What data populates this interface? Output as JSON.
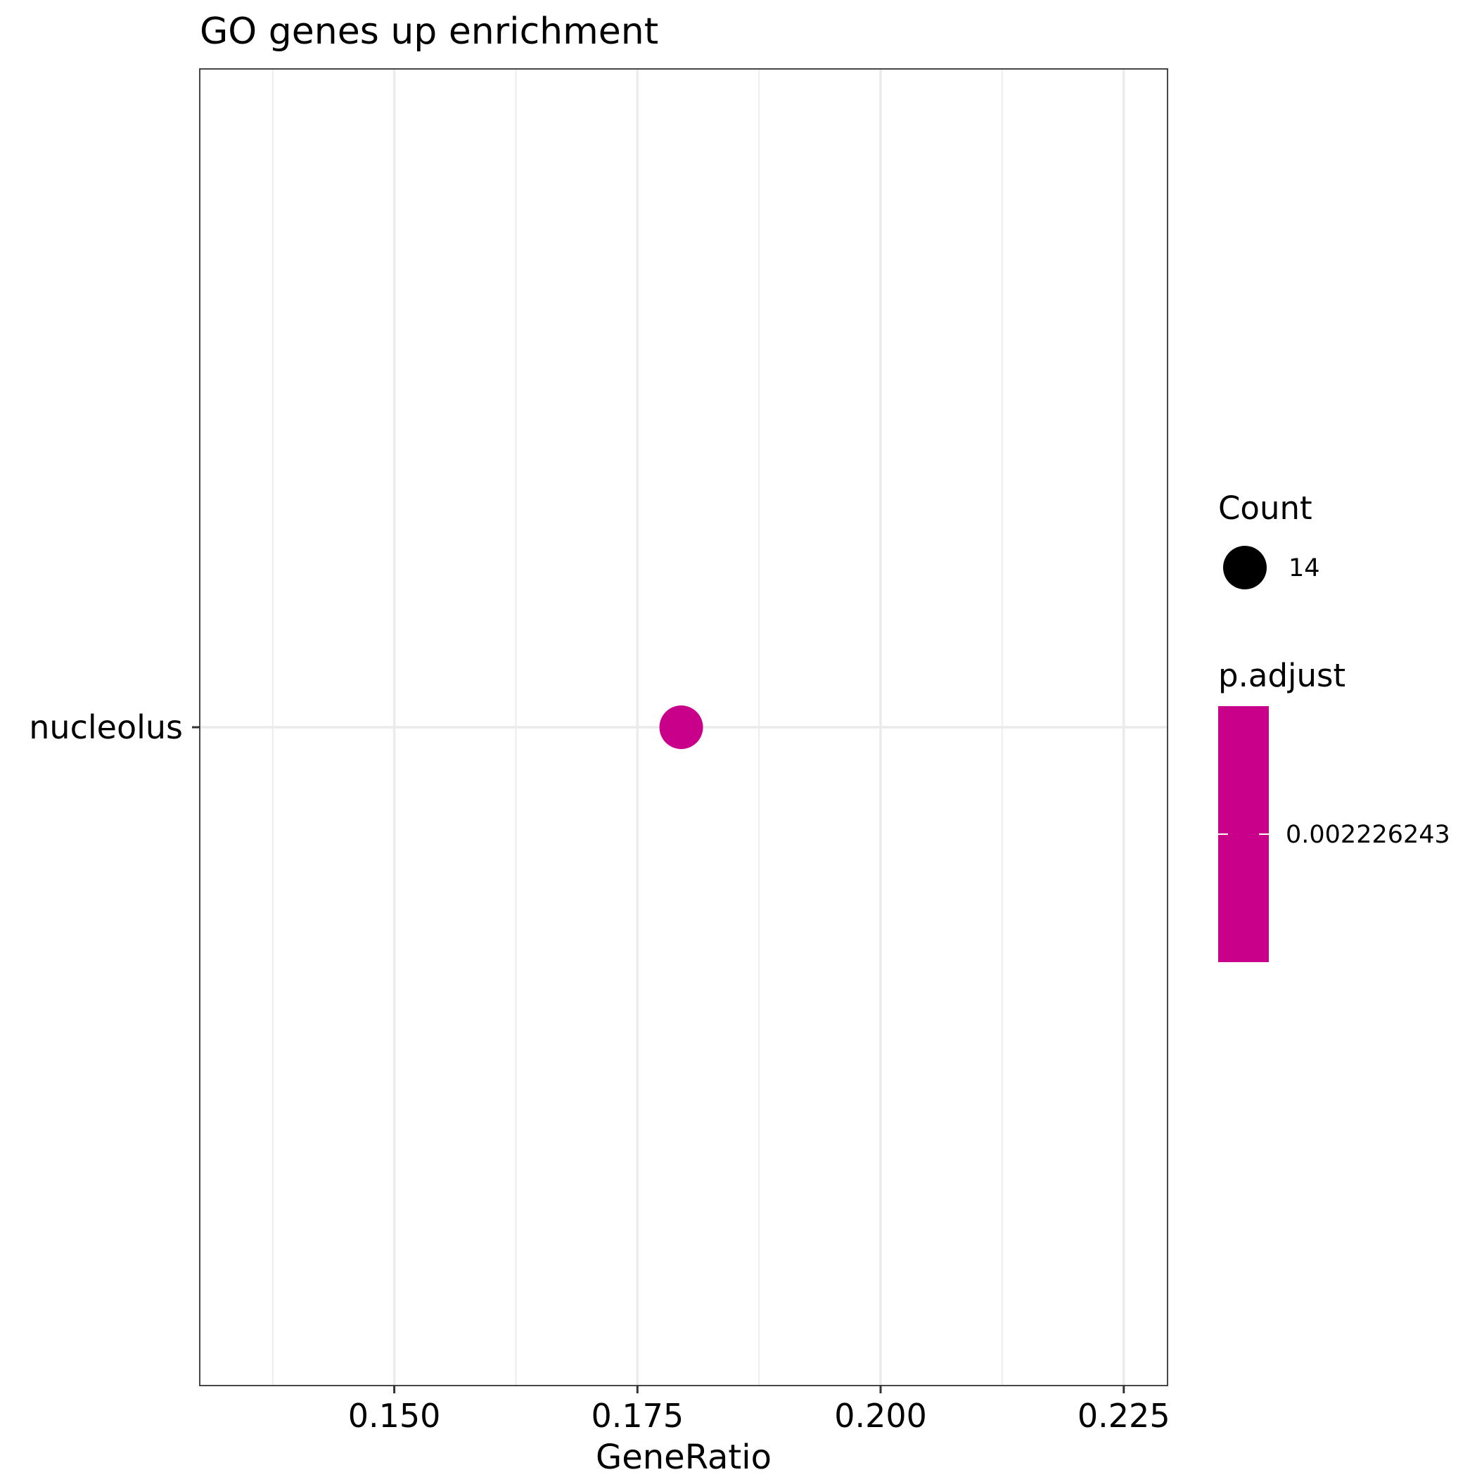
{
  "chart_data": {
    "type": "scatter",
    "title": "GO genes up enrichment",
    "xlabel": "GeneRatio",
    "ylabel": "",
    "xlim": [
      0.13,
      0.2295
    ],
    "x_ticks": [
      0.15,
      0.175,
      0.2,
      0.225
    ],
    "x_tick_labels": [
      "0.150",
      "0.175",
      "0.200",
      "0.225"
    ],
    "categories": [
      "nucleolus"
    ],
    "points": [
      {
        "category": "nucleolus",
        "x": 0.1795,
        "count": 14,
        "p_adjust": 0.002226243
      }
    ],
    "grid": true,
    "legend_position": "right",
    "legend": {
      "size_title": "Count",
      "size_labels": [
        "14"
      ],
      "color_title": "p.adjust",
      "color_labels": [
        "0.002226243"
      ],
      "color": "#c8008a"
    }
  },
  "colors": {
    "point": "#c8008a",
    "grid": "#ebebeb",
    "border": "#333333",
    "background": "#ffffff"
  }
}
